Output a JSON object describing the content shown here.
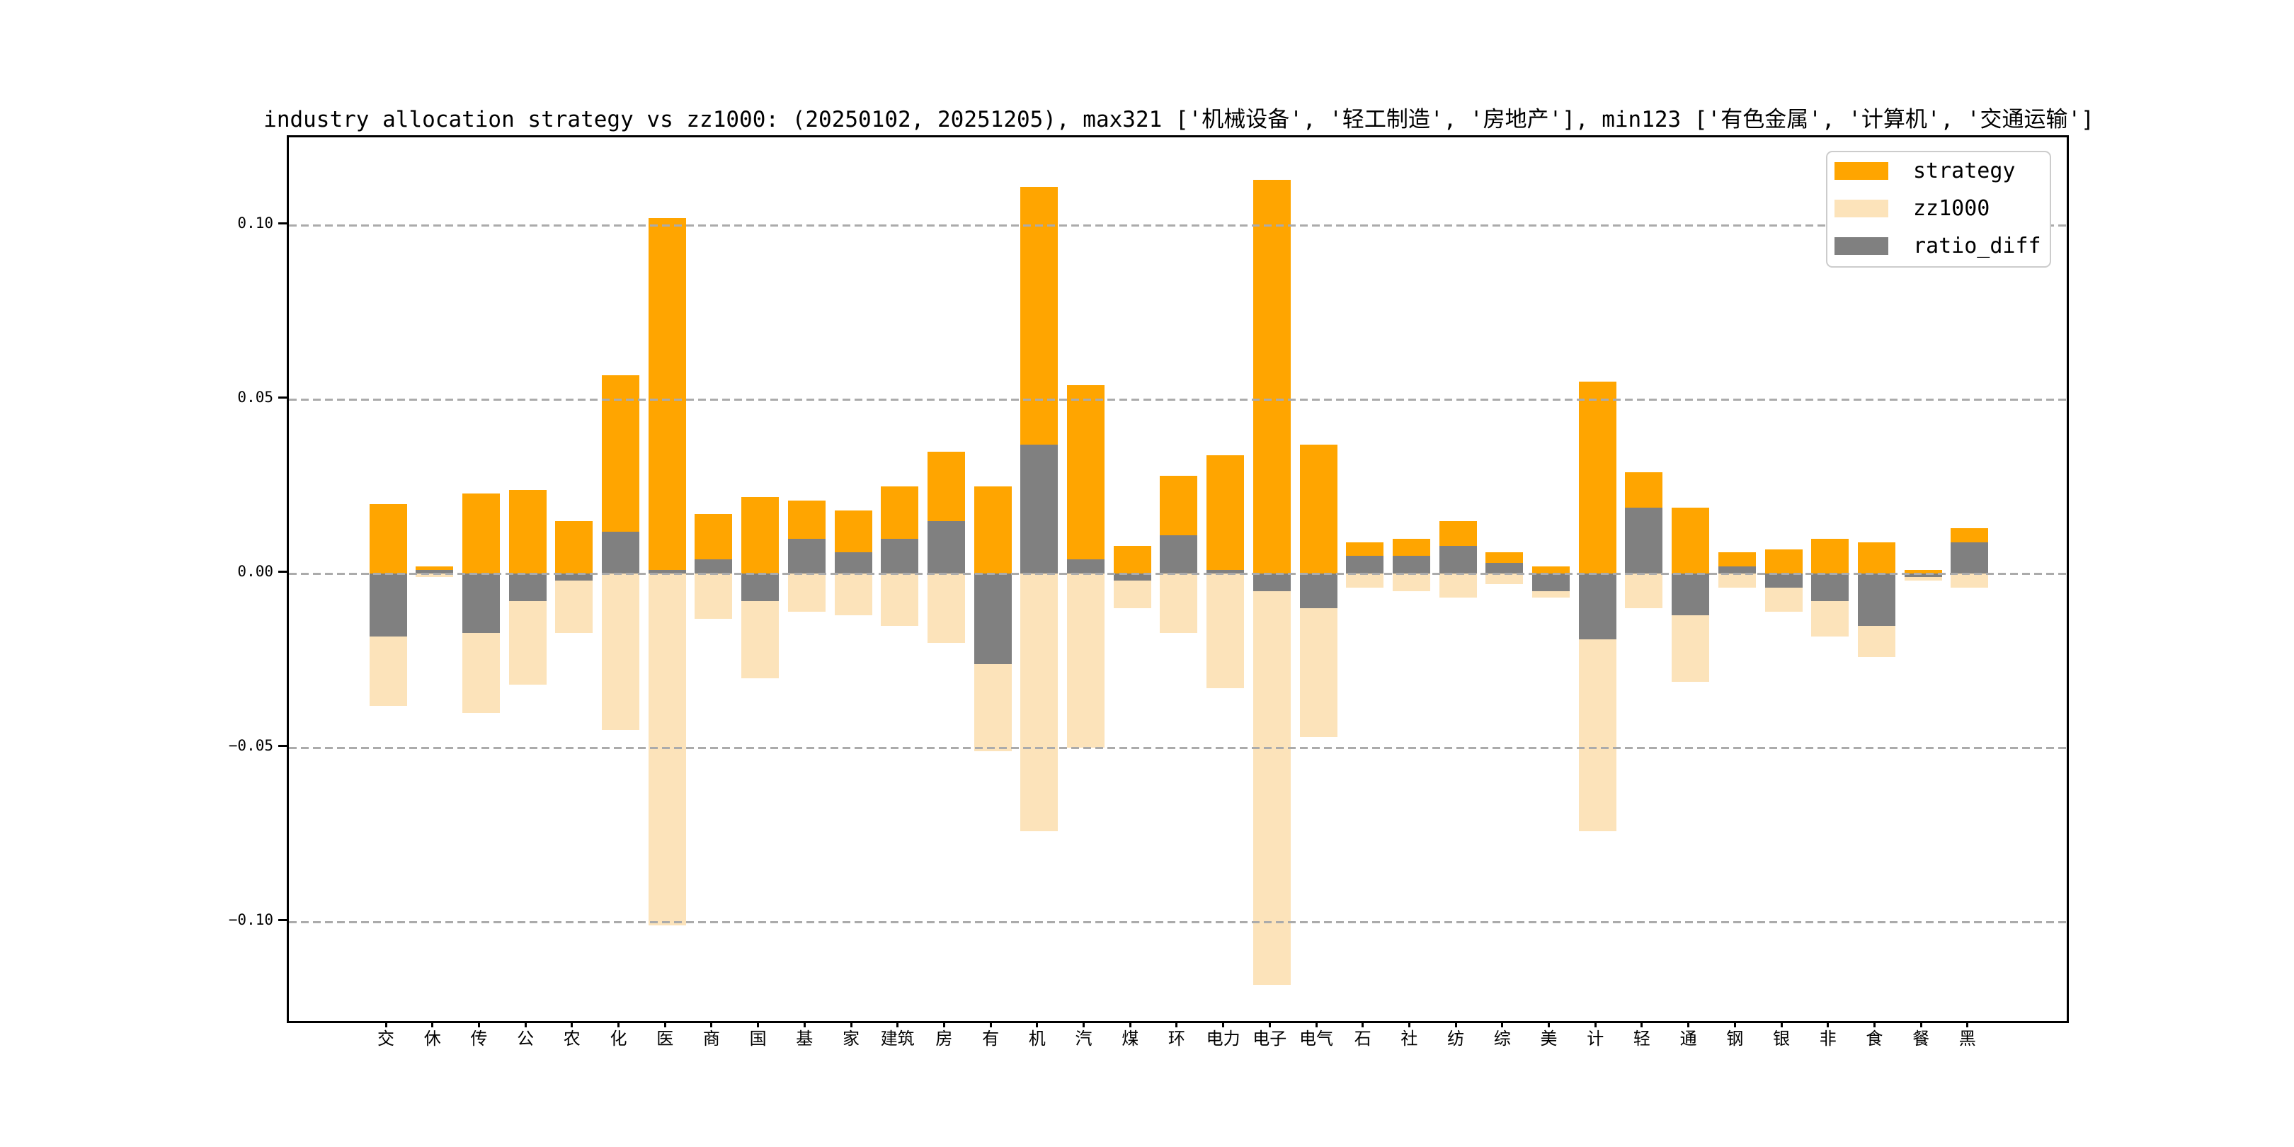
{
  "figure": {
    "background": "#ffffff"
  },
  "axes": {
    "y_ticks": [
      "0.10",
      "0.05",
      "0.00",
      "−0.05",
      "−0.10"
    ],
    "y_tick_values": [
      0.1,
      0.05,
      0.0,
      -0.05,
      -0.1
    ],
    "grid": "dashed-horizontal",
    "grid_color": "#ABABAB",
    "frame_color": "#000000"
  },
  "legend": {
    "position": "upper-right",
    "items": [
      {
        "label": "strategy",
        "color": "#FFA500"
      },
      {
        "label": "zz1000",
        "color": "#FCE3BA"
      },
      {
        "label": "ratio_diff",
        "color": "#808080"
      }
    ]
  },
  "chart_data": {
    "type": "bar",
    "title": "industry allocation strategy vs zz1000: (20250102, 20251205), max321 ['机械设备', '轻工制造', '房地产'], min123 ['有色金属', '计算机', '交通运输']",
    "xlabel": "",
    "ylabel": "",
    "ylim": [
      -0.128,
      0.125
    ],
    "bar_mode": "overlay",
    "legend_position": "upper right",
    "categories": [
      "交",
      "休",
      "传",
      "公",
      "农",
      "化",
      "医",
      "商",
      "国",
      "基",
      "家",
      "建筑",
      "房",
      "有",
      "机",
      "汽",
      "煤",
      "环",
      "电力",
      "电子",
      "电气",
      "石",
      "社",
      "纺",
      "综",
      "美",
      "计",
      "轻",
      "通",
      "钢",
      "银",
      "非",
      "食",
      "餐",
      "黑"
    ],
    "series": [
      {
        "name": "strategy",
        "color": "#FFA500",
        "values": [
          0.02,
          0.002,
          0.023,
          0.024,
          0.015,
          0.057,
          0.102,
          0.017,
          0.022,
          0.021,
          0.018,
          0.025,
          0.035,
          0.025,
          0.111,
          0.054,
          0.008,
          0.028,
          0.034,
          0.113,
          0.037,
          0.009,
          0.01,
          0.015,
          0.006,
          0.002,
          0.055,
          0.029,
          0.019,
          0.006,
          0.007,
          0.01,
          0.009,
          0.001,
          0.013
        ]
      },
      {
        "name": "zz1000",
        "color": "#FCE3BA",
        "values": [
          -0.038,
          -0.001,
          -0.04,
          -0.032,
          -0.017,
          -0.045,
          -0.101,
          -0.013,
          -0.03,
          -0.011,
          -0.012,
          -0.015,
          -0.02,
          -0.051,
          -0.074,
          -0.05,
          -0.01,
          -0.017,
          -0.033,
          -0.118,
          -0.047,
          -0.004,
          -0.005,
          -0.007,
          -0.003,
          -0.007,
          -0.074,
          -0.01,
          -0.031,
          -0.004,
          -0.011,
          -0.018,
          -0.024,
          -0.002,
          -0.004
        ]
      },
      {
        "name": "ratio_diff",
        "color": "#808080",
        "values": [
          -0.018,
          0.001,
          -0.017,
          -0.008,
          -0.002,
          0.012,
          0.001,
          0.004,
          -0.008,
          0.01,
          0.006,
          0.01,
          0.015,
          -0.026,
          0.037,
          0.004,
          -0.002,
          0.011,
          0.001,
          -0.005,
          -0.01,
          0.005,
          0.005,
          0.008,
          0.003,
          -0.005,
          -0.019,
          0.019,
          -0.012,
          0.002,
          -0.004,
          -0.008,
          -0.015,
          -0.001,
          0.009
        ]
      }
    ]
  }
}
